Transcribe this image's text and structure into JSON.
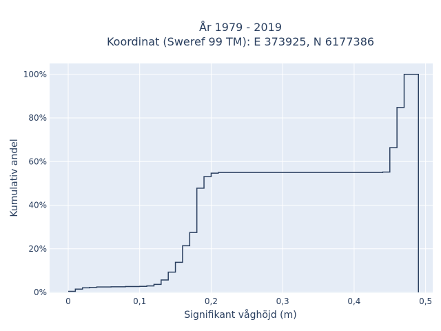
{
  "chart_data": {
    "type": "line",
    "line_shape": "step",
    "title_lines": [
      "År 1979 - 2019",
      "Koordinat (Sweref 99 TM): E 373925, N 6177386"
    ],
    "xlabel": "Signifikant våghöjd (m)",
    "ylabel": "Kumulativ andel",
    "xlim": [
      -0.026,
      0.51
    ],
    "ylim": [
      -0.003,
      1.05
    ],
    "grid": true,
    "x_ticks": [
      0,
      0.1,
      0.2,
      0.3,
      0.4,
      0.5
    ],
    "x_tick_labels": [
      "0",
      "0,1",
      "0,2",
      "0,3",
      "0,4",
      "0,5"
    ],
    "y_ticks": [
      0,
      0.2,
      0.4,
      0.6,
      0.8,
      1.0
    ],
    "y_tick_labels": [
      "0%",
      "20%",
      "40%",
      "60%",
      "80%",
      "100%"
    ],
    "colors": {
      "background": "#e5ecf6",
      "grid": "#ffffff",
      "line": "#2a3f5f"
    },
    "series": [
      {
        "x": [
          0,
          0.01,
          0.02,
          0.03,
          0.04,
          0.06,
          0.08,
          0.1,
          0.11,
          0.12,
          0.13,
          0.14,
          0.15,
          0.16,
          0.17,
          0.18,
          0.19,
          0.2,
          0.21,
          0.3,
          0.44,
          0.45,
          0.46,
          0.47,
          0.49
        ],
        "y": [
          0.005,
          0.015,
          0.021,
          0.023,
          0.025,
          0.026,
          0.027,
          0.028,
          0.03,
          0.037,
          0.057,
          0.093,
          0.138,
          0.214,
          0.275,
          0.478,
          0.531,
          0.547,
          0.55,
          0.55,
          0.552,
          0.664,
          0.848,
          1.0,
          0.0
        ]
      }
    ]
  }
}
